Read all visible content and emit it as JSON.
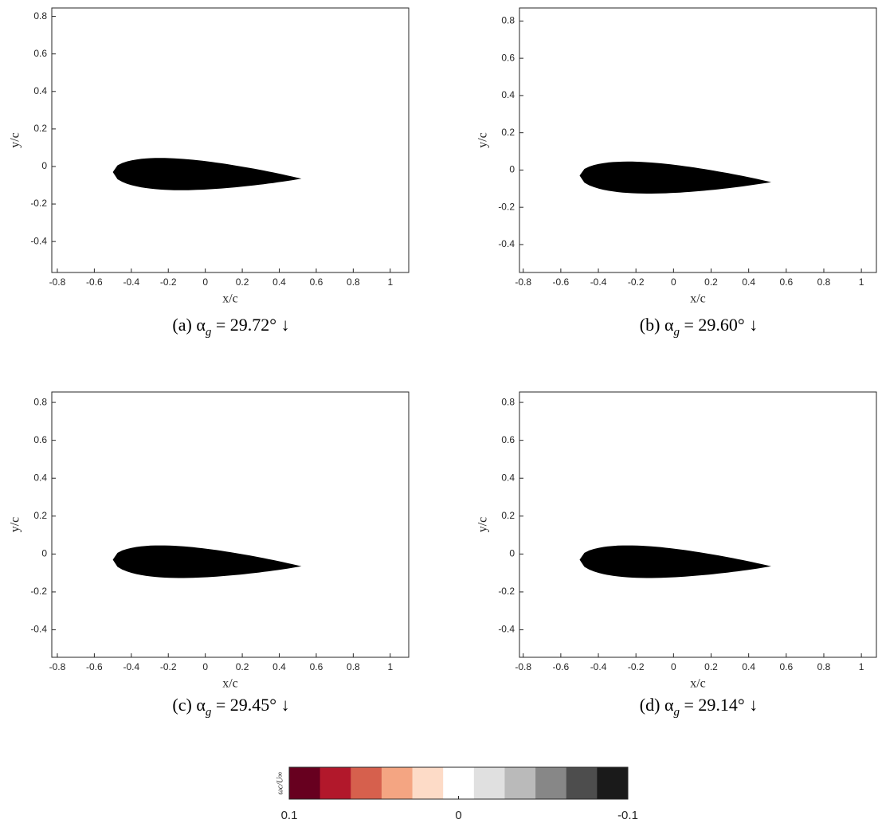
{
  "chart_data": [
    {
      "type": "quiver",
      "xlabel": "x/c",
      "ylabel": "y/c",
      "xlim": [
        -0.83,
        1.1
      ],
      "ylim": [
        -0.565,
        0.845
      ],
      "xticks": [
        -0.8,
        -0.6,
        -0.4,
        -0.2,
        0,
        0.2,
        0.4,
        0.6,
        0.8,
        1
      ],
      "yticks": [
        -0.4,
        -0.2,
        0,
        0.2,
        0.4,
        0.6,
        0.8
      ],
      "caption": [
        "(a) α",
        "g",
        " = 29.72° ↓"
      ]
    },
    {
      "type": "quiver",
      "xlabel": "x/c",
      "ylabel": "y/c",
      "xlim": [
        -0.82,
        1.08
      ],
      "ylim": [
        -0.55,
        0.87
      ],
      "xticks": [
        -0.8,
        -0.6,
        -0.4,
        -0.2,
        0,
        0.2,
        0.4,
        0.6,
        0.8,
        1
      ],
      "yticks": [
        -0.4,
        -0.2,
        0,
        0.2,
        0.4,
        0.6,
        0.8
      ],
      "caption": [
        "(b) α",
        "g",
        " = 29.60° ↓"
      ]
    },
    {
      "type": "quiver",
      "xlabel": "x/c",
      "ylabel": "y/c",
      "xlim": [
        -0.83,
        1.1
      ],
      "ylim": [
        -0.545,
        0.855
      ],
      "xticks": [
        -0.8,
        -0.6,
        -0.4,
        -0.2,
        0,
        0.2,
        0.4,
        0.6,
        0.8,
        1
      ],
      "yticks": [
        -0.4,
        -0.2,
        0,
        0.2,
        0.4,
        0.6,
        0.8
      ],
      "caption": [
        "(c) α",
        "g",
        " = 29.45° ↓"
      ]
    },
    {
      "type": "quiver",
      "xlabel": "x/c",
      "ylabel": "y/c",
      "xlim": [
        -0.82,
        1.08
      ],
      "ylim": [
        -0.545,
        0.855
      ],
      "xticks": [
        -0.8,
        -0.6,
        -0.4,
        -0.2,
        0,
        0.2,
        0.4,
        0.6,
        0.8,
        1
      ],
      "yticks": [
        -0.4,
        -0.2,
        0,
        0.2,
        0.4,
        0.6,
        0.8
      ],
      "caption": [
        "(d) α",
        "g",
        " = 29.14° ↓"
      ]
    },
    {
      "type": "colorbar",
      "label": "ωc/U∞",
      "lim": [
        0.1,
        -0.1
      ],
      "ticks": [
        0.1,
        0,
        -0.1
      ],
      "colors": [
        "#67001f",
        "#b2182b",
        "#d6604d",
        "#f4a582",
        "#fddbc7",
        "#ffffff",
        "#e0e0e0",
        "#bababa",
        "#878787",
        "#4d4d4d",
        "#1a1a1a"
      ]
    }
  ]
}
